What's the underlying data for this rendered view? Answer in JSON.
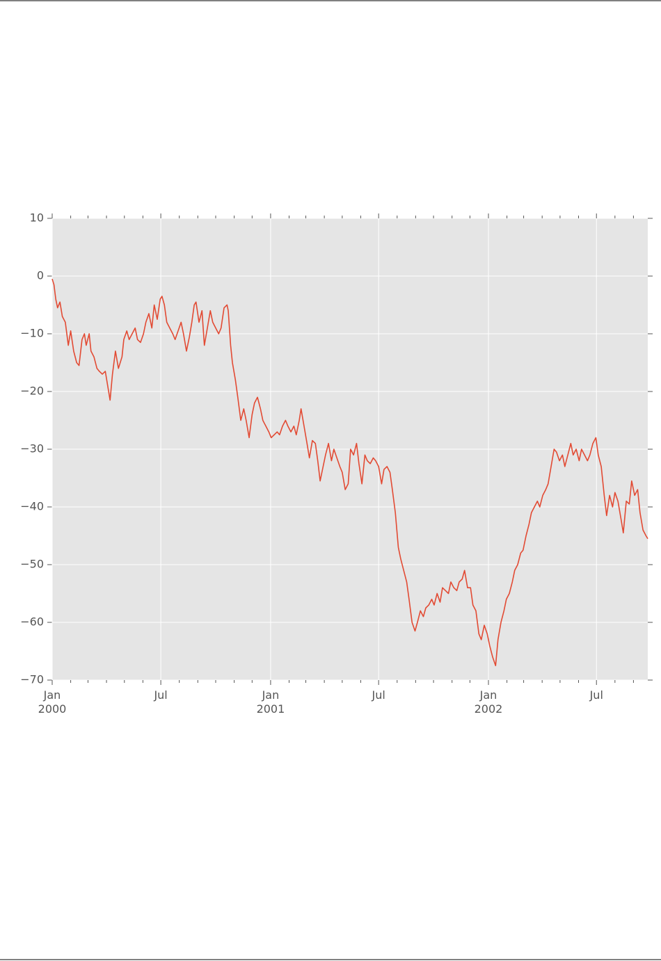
{
  "chart_data": {
    "type": "line",
    "x": [
      0,
      3,
      6,
      9,
      13,
      17,
      22,
      27,
      31,
      36,
      41,
      45,
      50,
      54,
      57,
      62,
      65,
      70,
      75,
      79,
      84,
      89,
      93,
      97,
      101,
      106,
      111,
      117,
      120,
      125,
      129,
      134,
      139,
      143,
      148,
      153,
      157,
      162,
      167,
      171,
      176,
      181,
      184,
      188,
      192,
      197,
      202,
      206,
      211,
      216,
      220,
      225,
      230,
      234,
      238,
      241,
      246,
      251,
      255,
      260,
      265,
      269,
      274,
      279,
      283,
      288,
      293,
      295,
      299,
      302,
      307,
      311,
      316,
      321,
      325,
      330,
      335,
      339,
      344,
      349,
      353,
      358,
      363,
      367,
      372,
      377,
      381,
      386,
      391,
      395,
      400,
      405,
      409,
      414,
      417,
      422,
      427,
      431,
      436,
      441,
      445,
      449,
      454,
      458,
      463,
      468,
      472,
      477,
      482,
      486,
      491,
      496,
      500,
      505,
      510,
      514,
      519,
      524,
      528,
      533,
      538,
      542,
      547,
      552,
      556,
      561,
      566,
      570,
      575,
      580,
      584,
      589,
      594,
      598,
      603,
      608,
      612,
      617,
      622,
      626,
      631,
      636,
      640,
      645,
      650,
      654,
      659,
      664,
      668,
      673,
      678,
      682,
      687,
      691,
      696,
      701,
      705,
      710,
      715,
      719,
      724,
      729,
      733,
      738,
      743,
      747,
      752,
      757,
      761,
      766,
      771,
      775,
      780,
      785,
      789,
      794,
      799,
      803,
      808,
      813,
      817,
      822,
      827,
      831,
      836,
      841,
      845,
      850,
      855,
      859,
      864,
      869,
      873,
      878,
      883,
      887,
      892,
      897,
      901,
      906,
      911,
      915,
      920,
      925,
      929,
      934,
      939,
      943,
      948,
      953,
      957,
      962,
      967,
      971,
      976,
      981,
      985,
      990,
      995,
      998
    ],
    "series": [
      {
        "color": "#e24a33",
        "values": [
          -0.5,
          -1.5,
          -4,
          -5.5,
          -4.5,
          -7,
          -8,
          -12,
          -9.5,
          -13,
          -15,
          -15.5,
          -11,
          -10,
          -12,
          -10,
          -13,
          -14,
          -16,
          -16.5,
          -17,
          -16.5,
          -19,
          -21.5,
          -17,
          -13,
          -16,
          -14,
          -11,
          -9.5,
          -11,
          -10,
          -9,
          -11,
          -11.5,
          -10,
          -8,
          -6.5,
          -9,
          -5,
          -7.5,
          -4,
          -3.5,
          -5,
          -8,
          -9,
          -10,
          -11,
          -9.5,
          -8,
          -10,
          -13,
          -10.5,
          -8,
          -5,
          -4.5,
          -8,
          -6,
          -12,
          -9,
          -6,
          -8,
          -9,
          -10,
          -9,
          -5.5,
          -5,
          -6,
          -12,
          -15,
          -18,
          -21,
          -25,
          -23,
          -25,
          -28,
          -24,
          -22,
          -21,
          -23,
          -25,
          -26,
          -27,
          -28,
          -27.5,
          -27,
          -27.5,
          -26,
          -25,
          -26,
          -27,
          -26,
          -27.5,
          -25,
          -23,
          -26,
          -29,
          -31.5,
          -28.5,
          -29,
          -32,
          -35.5,
          -33,
          -31,
          -29,
          -32,
          -30,
          -31.5,
          -33,
          -34,
          -37,
          -36,
          -30,
          -31,
          -29,
          -32.5,
          -36,
          -31,
          -32,
          -32.5,
          -31.5,
          -32,
          -33,
          -36,
          -33.5,
          -33,
          -34,
          -37,
          -41,
          -47,
          -49,
          -51,
          -53,
          -56,
          -60,
          -61.5,
          -60,
          -58,
          -59,
          -57.5,
          -57,
          -56,
          -57,
          -55,
          -56.5,
          -54,
          -54.5,
          -55,
          -53,
          -54,
          -54.5,
          -53,
          -52.5,
          -51,
          -54,
          -54,
          -57,
          -58,
          -62,
          -63,
          -60.5,
          -62,
          -64,
          -66,
          -67.5,
          -63,
          -60,
          -58,
          -56,
          -55,
          -53,
          -51,
          -50,
          -48,
          -47.5,
          -45,
          -43,
          -41,
          -40,
          -39,
          -40,
          -38,
          -37,
          -36,
          -33,
          -30,
          -30.5,
          -32,
          -31,
          -33,
          -31,
          -29,
          -31,
          -30,
          -32,
          -30,
          -31,
          -32,
          -31,
          -29,
          -28,
          -31,
          -33,
          -38,
          -41.5,
          -38,
          -40,
          -37.5,
          -39,
          -42,
          -44.5,
          -39,
          -39.5,
          -35.5,
          -38,
          -37,
          -41,
          -44,
          -45,
          -45.5
        ]
      }
    ],
    "xlim": [
      0,
      998
    ],
    "xticks": [
      {
        "value": 0,
        "label": "Jan\n2000"
      },
      {
        "value": 182,
        "label": "Jul"
      },
      {
        "value": 366,
        "label": "Jan\n2001"
      },
      {
        "value": 547,
        "label": "Jul"
      },
      {
        "value": 731,
        "label": "Jan\n2002"
      },
      {
        "value": 912,
        "label": "Jul"
      }
    ],
    "xminorticks": [
      31,
      60,
      91,
      121,
      152,
      213,
      244,
      274,
      305,
      335,
      397,
      425,
      456,
      486,
      517,
      578,
      609,
      639,
      670,
      700,
      762,
      790,
      821,
      851,
      882,
      943,
      974
    ],
    "ylim": [
      -70,
      10
    ],
    "yticks": [
      {
        "value": -70,
        "label": "−70"
      },
      {
        "value": -60,
        "label": "−60"
      },
      {
        "value": -50,
        "label": "−50"
      },
      {
        "value": -40,
        "label": "−40"
      },
      {
        "value": -30,
        "label": "−30"
      },
      {
        "value": -20,
        "label": "−20"
      },
      {
        "value": -10,
        "label": "−10"
      },
      0,
      10
    ],
    "grid": true
  }
}
